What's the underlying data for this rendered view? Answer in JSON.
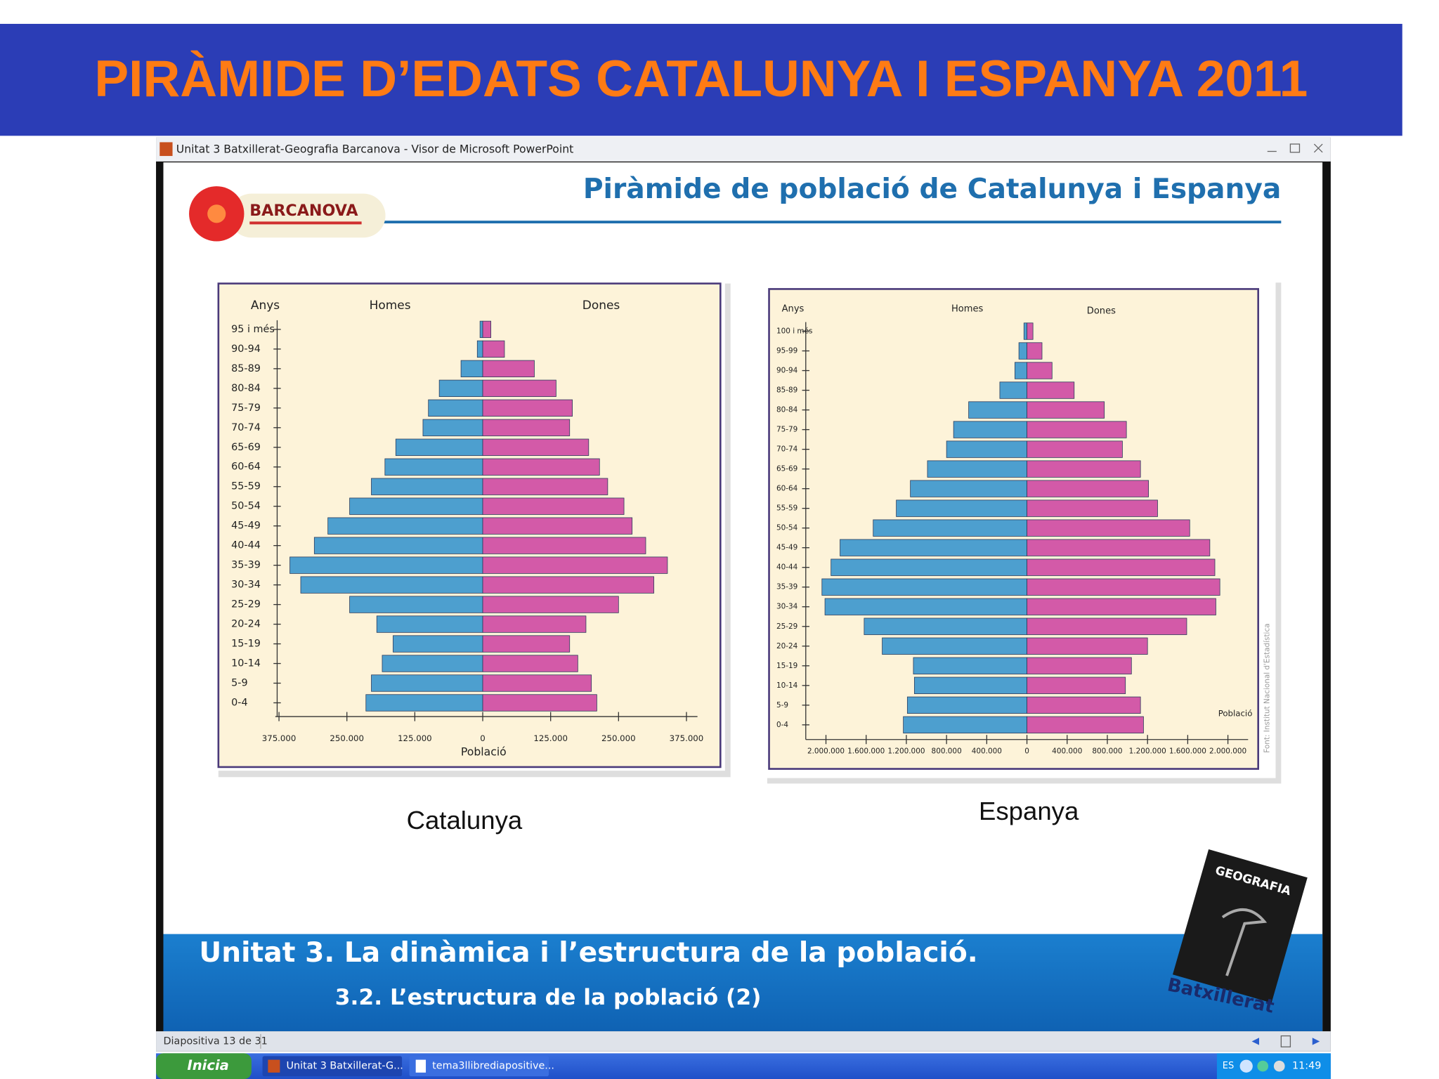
{
  "header": {
    "title": "PIRÀMIDE D’EDATS CATALUNYA I ESPANYA 2011"
  },
  "window": {
    "title": "Unitat 3 Batxillerat-Geografia Barcanova - Visor de Microsoft PowerPoint"
  },
  "slide": {
    "title": "Piràmide de població de Catalunya i Espanya",
    "logo": "BARCANOVA",
    "unit": "Unitat 3. La dinàmica i l’estructura de la població.",
    "section": "3.2. L’estructura de la població (2)",
    "book_title": "GEOGRAFIA",
    "book_subtitle": "Batxillerat"
  },
  "chart_data": [
    {
      "type": "pyramid",
      "caption": "Catalunya",
      "ylabel": "Anys",
      "xlabel": "Població",
      "categories": [
        "0-4",
        "5-9",
        "10-14",
        "15-19",
        "20-24",
        "25-29",
        "30-34",
        "35-39",
        "40-44",
        "45-49",
        "50-54",
        "55-59",
        "60-64",
        "65-69",
        "70-74",
        "75-79",
        "80-84",
        "85-89",
        "90-94",
        "95 i més"
      ],
      "series": [
        {
          "name": "Homes",
          "color": "#4d9fcf",
          "values": [
            215000,
            205000,
            185000,
            165000,
            195000,
            245000,
            335000,
            355000,
            310000,
            285000,
            245000,
            205000,
            180000,
            160000,
            110000,
            100000,
            80000,
            40000,
            10000,
            5000
          ]
        },
        {
          "name": "Dones",
          "color": "#d35aa8",
          "values": [
            210000,
            200000,
            175000,
            160000,
            190000,
            250000,
            315000,
            340000,
            300000,
            275000,
            260000,
            230000,
            215000,
            195000,
            160000,
            165000,
            135000,
            95000,
            40000,
            15000
          ]
        }
      ],
      "xlim": [
        -375000,
        375000
      ],
      "xticks": [
        {
          "value": -375000,
          "label": "375.000"
        },
        {
          "value": -250000,
          "label": "250.000"
        },
        {
          "value": -125000,
          "label": "125.000"
        },
        0,
        {
          "value": 125000,
          "label": "125.000"
        },
        {
          "value": 250000,
          "label": "250.000"
        },
        {
          "value": 375000,
          "label": "375.000"
        }
      ]
    },
    {
      "type": "pyramid",
      "caption": "Espanya",
      "ylabel": "Anys",
      "xlabel": "Població",
      "source": "Font: Institut Nacional d'Estadística",
      "categories": [
        "0-4",
        "5-9",
        "10-14",
        "15-19",
        "20-24",
        "25-29",
        "30-34",
        "35-39",
        "40-44",
        "45-49",
        "50-54",
        "55-59",
        "60-64",
        "65-69",
        "70-74",
        "75-79",
        "80-84",
        "85-89",
        "90-94",
        "95-99",
        "100 i més"
      ],
      "series": [
        {
          "name": "Homes",
          "color": "#4d9fcf",
          "values": [
            1230000,
            1190000,
            1120000,
            1130000,
            1440000,
            1620000,
            2010000,
            2040000,
            1950000,
            1860000,
            1530000,
            1300000,
            1160000,
            990000,
            800000,
            730000,
            580000,
            270000,
            120000,
            80000,
            30000
          ]
        },
        {
          "name": "Dones",
          "color": "#d35aa8",
          "values": [
            1160000,
            1130000,
            980000,
            1040000,
            1200000,
            1590000,
            1880000,
            1920000,
            1870000,
            1820000,
            1620000,
            1300000,
            1210000,
            1130000,
            950000,
            990000,
            770000,
            470000,
            250000,
            150000,
            60000
          ]
        }
      ],
      "xlim": [
        -2000000,
        2000000
      ],
      "xticks": [
        {
          "value": -2000000,
          "label": "2.000.000"
        },
        {
          "value": -1600000,
          "label": "1.600.000"
        },
        {
          "value": -1200000,
          "label": "1.200.000"
        },
        {
          "value": -800000,
          "label": "800.000"
        },
        {
          "value": -400000,
          "label": "400.000"
        },
        0,
        {
          "value": 400000,
          "label": "400.000"
        },
        {
          "value": 800000,
          "label": "800.000"
        },
        {
          "value": 1200000,
          "label": "1.200.000"
        },
        {
          "value": 1600000,
          "label": "1.600.000"
        },
        {
          "value": 2000000,
          "label": "2.000.000"
        }
      ]
    }
  ],
  "status_bar": {
    "slide": "Diapositiva 13 de 31"
  },
  "taskbar": {
    "start": "Inicia",
    "items": [
      "Unitat 3 Batxillerat-G...",
      "tema3llibrediapositive..."
    ],
    "language": "ES",
    "clock": "11:49"
  }
}
